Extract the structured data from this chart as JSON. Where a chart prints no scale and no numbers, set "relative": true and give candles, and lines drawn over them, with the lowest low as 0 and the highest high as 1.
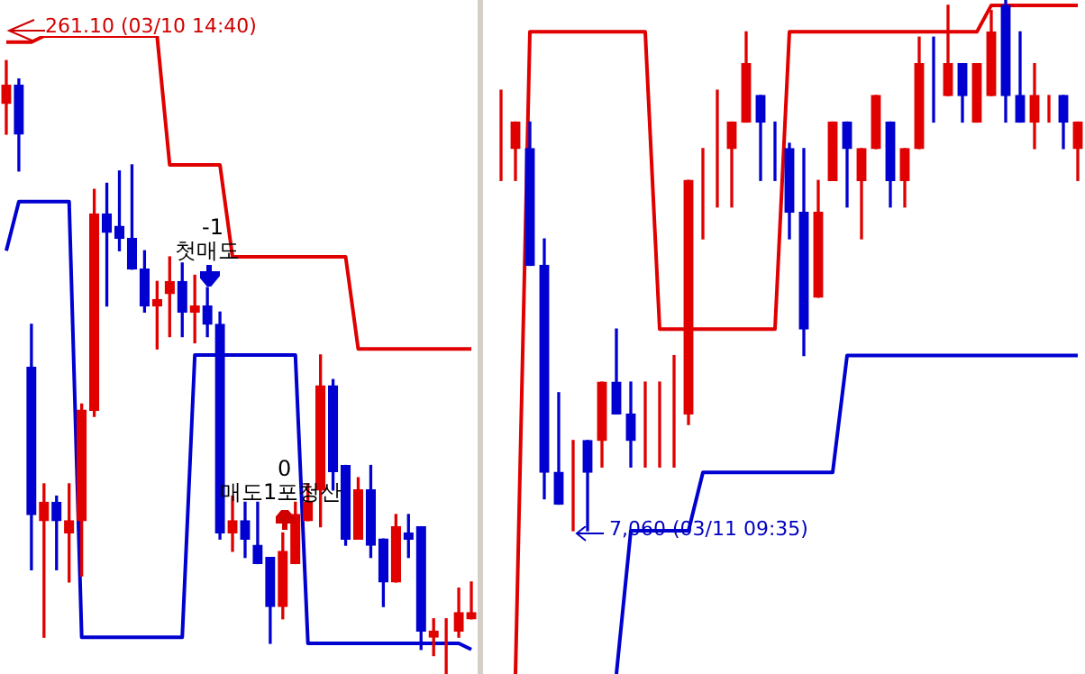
{
  "chart_data": [
    {
      "type": "candlestick",
      "relative": true,
      "categories": [
        null,
        null,
        null,
        null,
        null,
        null,
        null,
        null,
        null,
        null,
        null,
        null,
        null,
        null,
        null,
        null,
        null,
        null,
        null,
        null,
        null,
        null,
        null,
        null,
        null,
        null,
        null,
        null,
        null,
        null,
        null,
        null,
        null,
        null,
        null,
        null,
        null,
        null
      ],
      "ohlc": [
        [
          0.93,
          1.0,
          0.88,
          0.96
        ],
        [
          0.96,
          0.97,
          0.82,
          0.88
        ],
        [
          0.5,
          0.57,
          0.17,
          0.26
        ],
        [
          0.25,
          0.31,
          0.06,
          0.28
        ],
        [
          0.28,
          0.29,
          0.17,
          0.25
        ],
        [
          0.23,
          0.31,
          0.15,
          0.25
        ],
        [
          0.25,
          0.44,
          0.16,
          0.43
        ],
        [
          0.43,
          0.79,
          0.42,
          0.75
        ],
        [
          0.75,
          0.8,
          0.6,
          0.72
        ],
        [
          0.73,
          0.82,
          0.69,
          0.71
        ],
        [
          0.71,
          0.83,
          0.66,
          0.66
        ],
        [
          0.66,
          0.69,
          0.59,
          0.6
        ],
        [
          0.6,
          0.64,
          0.53,
          0.61
        ],
        [
          0.62,
          0.68,
          0.55,
          0.64
        ],
        [
          0.64,
          0.67,
          0.55,
          0.59
        ],
        [
          0.59,
          0.65,
          0.54,
          0.6
        ],
        [
          0.6,
          0.63,
          0.55,
          0.57
        ],
        [
          0.57,
          0.59,
          0.22,
          0.23
        ],
        [
          0.23,
          0.29,
          0.2,
          0.25
        ],
        [
          0.25,
          0.28,
          0.19,
          0.22
        ],
        [
          0.21,
          0.28,
          0.18,
          0.18
        ],
        [
          0.19,
          0.19,
          0.05,
          0.11
        ],
        [
          0.11,
          0.23,
          0.09,
          0.2
        ],
        [
          0.18,
          0.28,
          0.18,
          0.26
        ],
        [
          0.25,
          0.31,
          0.25,
          0.28
        ],
        [
          0.3,
          0.52,
          0.24,
          0.47
        ],
        [
          0.47,
          0.48,
          0.3,
          0.33
        ],
        [
          0.34,
          0.34,
          0.21,
          0.22
        ],
        [
          0.22,
          0.32,
          0.22,
          0.3
        ],
        [
          0.3,
          0.34,
          0.19,
          0.21
        ],
        [
          0.22,
          0.22,
          0.11,
          0.15
        ],
        [
          0.15,
          0.26,
          0.15,
          0.24
        ],
        [
          0.23,
          0.26,
          0.19,
          0.22
        ],
        [
          0.24,
          0.24,
          0.04,
          0.07
        ],
        [
          0.06,
          0.09,
          0.03,
          0.07
        ],
        [
          0.07,
          0.09,
          0.0,
          0.07
        ],
        [
          0.07,
          0.14,
          0.06,
          0.1
        ],
        [
          0.09,
          0.15,
          0.09,
          0.1
        ]
      ],
      "colors": [
        "#e00000",
        "#0000d0",
        "#0000d0",
        "#e00000",
        "#0000d0",
        "#e00000",
        "#e00000",
        "#e00000",
        "#0000d0",
        "#0000d0",
        "#0000d0",
        "#0000d0",
        "#e00000",
        "#e00000",
        "#0000d0",
        "#e00000",
        "#0000d0",
        "#0000d0",
        "#e00000",
        "#0000d0",
        "#0000d0",
        "#0000d0",
        "#e00000",
        "#e00000",
        "#e00000",
        "#e00000",
        "#0000d0",
        "#0000d0",
        "#e00000",
        "#0000d0",
        "#0000d0",
        "#e00000",
        "#0000d0",
        "#0000d0",
        "#e00000",
        "#e00000",
        "#e00000",
        "#e00000"
      ],
      "series": [
        {
          "type": "line",
          "color": "#e00000",
          "values": [
            1.03,
            1.03,
            1.03,
            1.04,
            1.04,
            1.04,
            1.04,
            1.04,
            1.04,
            1.04,
            1.04,
            1.04,
            1.04,
            0.83,
            0.83,
            0.83,
            0.83,
            0.83,
            0.68,
            0.68,
            0.68,
            0.68,
            0.68,
            0.68,
            0.68,
            0.68,
            0.68,
            0.68,
            0.53,
            0.53,
            0.53,
            0.53,
            0.53,
            0.53,
            0.53,
            0.53,
            0.53,
            0.53
          ]
        },
        {
          "type": "line",
          "color": "#0000d0",
          "values": [
            0.69,
            0.77,
            0.77,
            0.77,
            0.77,
            0.77,
            0.06,
            0.06,
            0.06,
            0.06,
            0.06,
            0.06,
            0.06,
            0.06,
            0.06,
            0.52,
            0.52,
            0.52,
            0.52,
            0.52,
            0.52,
            0.52,
            0.52,
            0.52,
            0.05,
            0.05,
            0.05,
            0.05,
            0.05,
            0.05,
            0.05,
            0.05,
            0.05,
            0.05,
            0.05,
            0.05,
            0.05,
            0.04
          ]
        }
      ],
      "annotations": [
        "261.10 (03/10 14:40)",
        "-1",
        "첫매도",
        "0",
        "매도1포청산"
      ]
    },
    {
      "type": "candlestick",
      "relative": true,
      "categories": [
        null,
        null,
        null,
        null,
        null,
        null,
        null,
        null,
        null,
        null,
        null,
        null,
        null,
        null,
        null,
        null,
        null,
        null,
        null,
        null,
        null,
        null,
        null,
        null,
        null,
        null,
        null,
        null,
        null,
        null,
        null,
        null,
        null,
        null,
        null,
        null,
        null,
        null,
        null,
        null,
        null
      ],
      "ohlc": [
        [
          0.72,
          0.83,
          0.66,
          0.72
        ],
        [
          0.72,
          0.77,
          0.66,
          0.77
        ],
        [
          0.72,
          0.77,
          0.5,
          0.5
        ],
        [
          0.5,
          0.55,
          0.06,
          0.11
        ],
        [
          0.11,
          0.26,
          0.05,
          0.05
        ],
        [
          0.11,
          0.17,
          0.0,
          0.11
        ],
        [
          0.17,
          0.17,
          0.0,
          0.11
        ],
        [
          0.17,
          0.28,
          0.12,
          0.28
        ],
        [
          0.28,
          0.38,
          0.22,
          0.22
        ],
        [
          0.22,
          0.28,
          0.12,
          0.17
        ],
        [
          0.22,
          0.28,
          0.12,
          0.22
        ],
        [
          0.22,
          0.28,
          0.12,
          0.22
        ],
        [
          0.22,
          0.33,
          0.12,
          0.22
        ],
        [
          0.22,
          0.66,
          0.2,
          0.66
        ],
        [
          0.66,
          0.72,
          0.55,
          0.66
        ],
        [
          0.66,
          0.83,
          0.61,
          0.66
        ],
        [
          0.72,
          0.77,
          0.61,
          0.77
        ],
        [
          0.77,
          0.94,
          0.77,
          0.88
        ],
        [
          0.82,
          0.82,
          0.66,
          0.77
        ],
        [
          0.72,
          0.77,
          0.66,
          0.72
        ],
        [
          0.72,
          0.73,
          0.55,
          0.6
        ],
        [
          0.6,
          0.72,
          0.33,
          0.38
        ],
        [
          0.44,
          0.66,
          0.44,
          0.6
        ],
        [
          0.66,
          0.77,
          0.66,
          0.77
        ],
        [
          0.77,
          0.77,
          0.61,
          0.72
        ],
        [
          0.66,
          0.72,
          0.55,
          0.72
        ],
        [
          0.72,
          0.82,
          0.72,
          0.82
        ],
        [
          0.77,
          0.77,
          0.61,
          0.66
        ],
        [
          0.66,
          0.72,
          0.61,
          0.72
        ],
        [
          0.72,
          0.93,
          0.72,
          0.88
        ],
        [
          0.82,
          0.93,
          0.77,
          0.82
        ],
        [
          0.82,
          0.99,
          0.82,
          0.88
        ],
        [
          0.88,
          0.88,
          0.77,
          0.82
        ],
        [
          0.77,
          0.88,
          0.77,
          0.88
        ],
        [
          0.82,
          0.98,
          0.82,
          0.94
        ],
        [
          0.99,
          1.0,
          0.77,
          0.82
        ],
        [
          0.82,
          0.94,
          0.77,
          0.77
        ],
        [
          0.77,
          0.88,
          0.72,
          0.82
        ],
        [
          0.82,
          0.82,
          0.77,
          0.82
        ],
        [
          0.82,
          0.82,
          0.72,
          0.77
        ],
        [
          0.72,
          0.77,
          0.66,
          0.77
        ]
      ],
      "colors": [
        "#e00000",
        "#e00000",
        "#0000d0",
        "#0000d0",
        "#0000d0",
        "#e00000",
        "#0000d0",
        "#e00000",
        "#0000d0",
        "#0000d0",
        "#e00000",
        "#e00000",
        "#e00000",
        "#e00000",
        "#e00000",
        "#e00000",
        "#e00000",
        "#e00000",
        "#0000d0",
        "#0000d0",
        "#0000d0",
        "#0000d0",
        "#e00000",
        "#e00000",
        "#0000d0",
        "#e00000",
        "#e00000",
        "#0000d0",
        "#e00000",
        "#e00000",
        "#0000d0",
        "#e00000",
        "#0000d0",
        "#e00000",
        "#e00000",
        "#0000d0",
        "#0000d0",
        "#e00000",
        "#e00000",
        "#0000d0",
        "#e00000"
      ],
      "series": [
        {
          "type": "line",
          "color": "#e00000",
          "values": [
            null,
            -0.27,
            0.94,
            0.94,
            0.94,
            0.94,
            0.94,
            0.94,
            0.94,
            0.94,
            0.94,
            0.38,
            0.38,
            0.38,
            0.38,
            0.38,
            0.38,
            0.38,
            0.38,
            0.38,
            0.94,
            0.94,
            0.94,
            0.94,
            0.94,
            0.94,
            0.94,
            0.94,
            0.94,
            0.94,
            0.94,
            0.94,
            0.94,
            0.94,
            0.99,
            0.99,
            0.99,
            0.99,
            0.99,
            0.99,
            0.99
          ]
        },
        {
          "type": "line",
          "color": "#0000d0",
          "values": [
            null,
            null,
            null,
            null,
            null,
            null,
            null,
            null,
            -0.27,
            0.0,
            0.0,
            0.0,
            0.0,
            0.0,
            0.11,
            0.11,
            0.11,
            0.11,
            0.11,
            0.11,
            0.11,
            0.11,
            0.11,
            0.11,
            0.33,
            0.33,
            0.33,
            0.33,
            0.33,
            0.33,
            0.33,
            0.33,
            0.33,
            0.33,
            0.33,
            0.33,
            0.33,
            0.33,
            0.33,
            0.33,
            0.33
          ]
        }
      ],
      "annotations": [
        "7,060 (03/11 09:35)"
      ]
    }
  ]
}
